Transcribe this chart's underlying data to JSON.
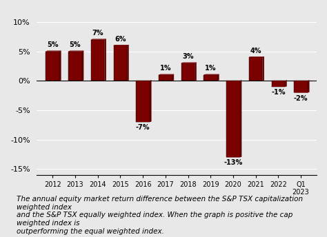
{
  "categories": [
    "2012",
    "2013",
    "2014",
    "2015",
    "2016",
    "2017",
    "2018",
    "2019",
    "2020",
    "2021",
    "2022",
    "Q1\n2023"
  ],
  "values": [
    5,
    5,
    7,
    6,
    -7,
    1,
    3,
    1,
    -13,
    4,
    -1,
    -2
  ],
  "bar_color": "#7B0000",
  "bar_color_dark": "#5C0000",
  "ylim": [
    -16,
    12
  ],
  "yticks": [
    -15,
    -10,
    -5,
    0,
    5,
    10
  ],
  "ytick_labels": [
    "-15%",
    "-10%",
    "-5%",
    "0%",
    "5%",
    "10%"
  ],
  "caption": "The annual equity market return difference between the S&P TSX capitalization weighted index\nand the S&P TSX equally weighted index. When the graph is positive the cap weighted index is\noutperforming the equal weighted index.",
  "caption_fontsize": 7.5,
  "label_fontsize": 7,
  "tick_fontsize": 8,
  "background_color": "#e8e8e8"
}
